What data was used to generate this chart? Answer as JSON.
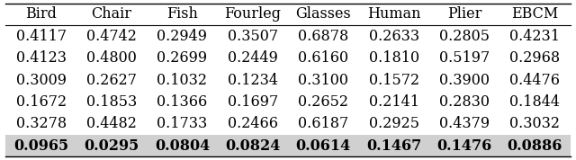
{
  "columns": [
    "Bird",
    "Chair",
    "Fish",
    "Fourleg",
    "Glasses",
    "Human",
    "Plier",
    "EBCM"
  ],
  "rows": [
    [
      "0.4117",
      "0.4742",
      "0.2949",
      "0.3507",
      "0.6878",
      "0.2633",
      "0.2805",
      "0.4231"
    ],
    [
      "0.4123",
      "0.4800",
      "0.2699",
      "0.2449",
      "0.6160",
      "0.1810",
      "0.5197",
      "0.2968"
    ],
    [
      "0.3009",
      "0.2627",
      "0.1032",
      "0.1234",
      "0.3100",
      "0.1572",
      "0.3900",
      "0.4476"
    ],
    [
      "0.1672",
      "0.1853",
      "0.1366",
      "0.1697",
      "0.2652",
      "0.2141",
      "0.2830",
      "0.1844"
    ],
    [
      "0.3278",
      "0.4482",
      "0.1733",
      "0.2466",
      "0.6187",
      "0.2925",
      "0.4379",
      "0.3032"
    ],
    [
      "0.0965",
      "0.0295",
      "0.0804",
      "0.0824",
      "0.0614",
      "0.1467",
      "0.1476",
      "0.0886"
    ]
  ],
  "last_row_bold": true,
  "header_bold": false,
  "bg_color_last_row": "#d0d0d0",
  "font_size": 11.5,
  "header_font_size": 11.5
}
